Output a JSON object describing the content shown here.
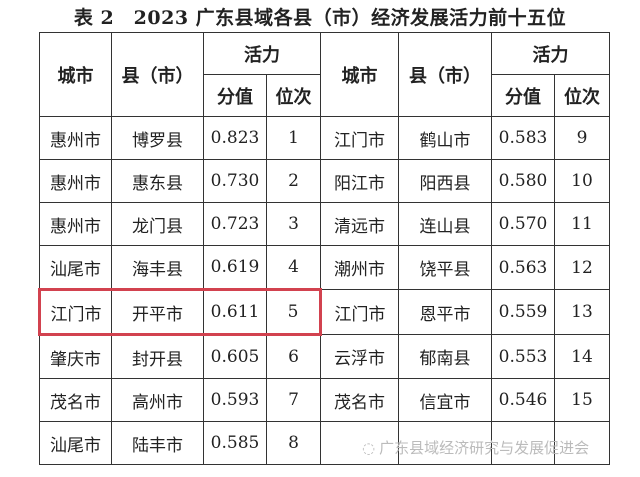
{
  "title": "表 2　2023 广东县域各县（市）经济发展活力前十五位",
  "headers": {
    "city": "城市",
    "county": "县（市）",
    "vitality": "活力",
    "score": "分值",
    "rank": "位次"
  },
  "left_rows": [
    {
      "city": "惠州市",
      "county": "博罗县",
      "score": "0.823",
      "rank": "1"
    },
    {
      "city": "惠州市",
      "county": "惠东县",
      "score": "0.730",
      "rank": "2"
    },
    {
      "city": "惠州市",
      "county": "龙门县",
      "score": "0.723",
      "rank": "3"
    },
    {
      "city": "汕尾市",
      "county": "海丰县",
      "score": "0.619",
      "rank": "4"
    },
    {
      "city": "江门市",
      "county": "开平市",
      "score": "0.611",
      "rank": "5"
    },
    {
      "city": "肇庆市",
      "county": "封开县",
      "score": "0.605",
      "rank": "6"
    },
    {
      "city": "茂名市",
      "county": "高州市",
      "score": "0.593",
      "rank": "7"
    },
    {
      "city": "汕尾市",
      "county": "陆丰市",
      "score": "0.585",
      "rank": "8"
    }
  ],
  "right_rows": [
    {
      "city": "江门市",
      "county": "鹤山市",
      "score": "0.583",
      "rank": "9"
    },
    {
      "city": "阳江市",
      "county": "阳西县",
      "score": "0.580",
      "rank": "10"
    },
    {
      "city": "清远市",
      "county": "连山县",
      "score": "0.570",
      "rank": "11"
    },
    {
      "city": "潮州市",
      "county": "饶平县",
      "score": "0.563",
      "rank": "12"
    },
    {
      "city": "江门市",
      "county": "恩平市",
      "score": "0.559",
      "rank": "13"
    },
    {
      "city": "云浮市",
      "county": "郁南县",
      "score": "0.553",
      "rank": "14"
    },
    {
      "city": "茂名市",
      "county": "信宜市",
      "score": "0.546",
      "rank": "15"
    },
    {
      "city": "",
      "county": "",
      "score": "",
      "rank": ""
    }
  ],
  "highlight_color": "#d2424f",
  "watermark": "广东县域经济研究与发展促进会"
}
